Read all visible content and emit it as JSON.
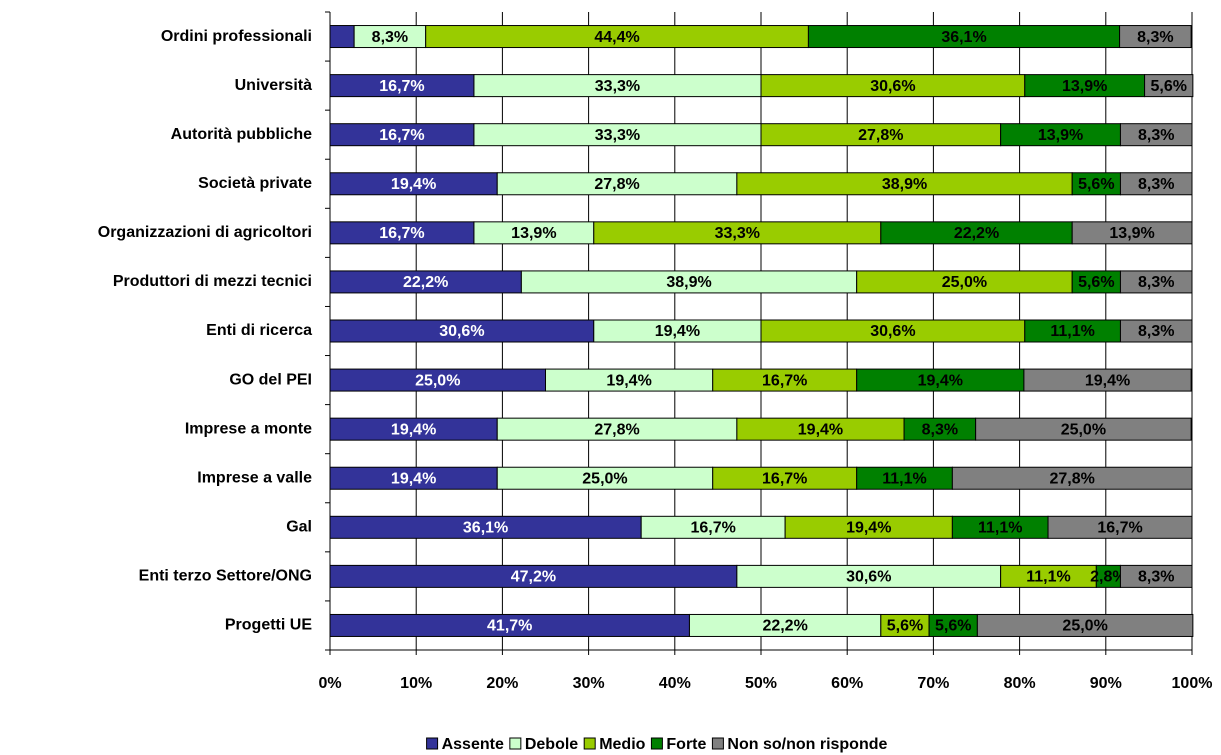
{
  "chart_data": {
    "type": "stacked-barh",
    "categories": [
      "Ordini professionali",
      "Università",
      "Autorità pubbliche",
      "Società private",
      "Organizzazioni di agricoltori",
      "Produttori di mezzi tecnici",
      "Enti di ricerca",
      "GO del PEI",
      "Imprese a monte",
      "Imprese a valle",
      "Gal",
      "Enti terzo Settore/ONG",
      "Progetti UE"
    ],
    "series": [
      {
        "name": "Assente",
        "color": "#333399",
        "label_color": "#ffffff",
        "values": [
          2.8,
          16.7,
          16.7,
          19.4,
          16.7,
          22.2,
          30.6,
          25.0,
          19.4,
          19.4,
          36.1,
          47.2,
          41.7
        ],
        "value_labels": [
          null,
          "16,7%",
          "16,7%",
          "19,4%",
          "16,7%",
          "22,2%",
          "30,6%",
          "25,0%",
          "19,4%",
          "19,4%",
          "36,1%",
          "47,2%",
          "41,7%"
        ]
      },
      {
        "name": "Debole",
        "color": "#ccffcc",
        "label_color": "#000000",
        "values": [
          8.3,
          33.3,
          33.3,
          27.8,
          13.9,
          38.9,
          19.4,
          19.4,
          27.8,
          25.0,
          16.7,
          30.6,
          22.2
        ],
        "value_labels": [
          "8,3%",
          "33,3%",
          "33,3%",
          "27,8%",
          "13,9%",
          "38,9%",
          "19,4%",
          "19,4%",
          "27,8%",
          "25,0%",
          "16,7%",
          "30,6%",
          "22,2%"
        ]
      },
      {
        "name": "Medio",
        "color": "#99cc00",
        "label_color": "#000000",
        "values": [
          44.4,
          30.6,
          27.8,
          38.9,
          33.3,
          25.0,
          30.6,
          16.7,
          19.4,
          16.7,
          19.4,
          11.1,
          5.6
        ],
        "value_labels": [
          "44,4%",
          "30,6%",
          "27,8%",
          "38,9%",
          "33,3%",
          "25,0%",
          "30,6%",
          "16,7%",
          "19,4%",
          "16,7%",
          "19,4%",
          "11,1%",
          "5,6%"
        ]
      },
      {
        "name": "Forte",
        "color": "#008000",
        "label_color": "#000000",
        "values": [
          36.1,
          13.9,
          13.9,
          5.6,
          22.2,
          5.6,
          11.1,
          19.4,
          8.3,
          11.1,
          11.1,
          2.8,
          5.6
        ],
        "value_labels": [
          "36,1%",
          "13,9%",
          "13,9%",
          "5,6%",
          "22,2%",
          "5,6%",
          "11,1%",
          "19,4%",
          "8,3%",
          "11,1%",
          "11,1%",
          "2,8%",
          "5,6%"
        ]
      },
      {
        "name": "Non so/non risponde",
        "color": "#808080",
        "label_color": "#000000",
        "values": [
          8.3,
          5.6,
          8.3,
          8.3,
          13.9,
          8.3,
          8.3,
          19.4,
          25.0,
          27.8,
          16.7,
          8.3,
          25.0
        ],
        "value_labels": [
          "8,3%",
          "5,6%",
          "8,3%",
          "8,3%",
          "13,9%",
          "8,3%",
          "8,3%",
          "19,4%",
          "25,0%",
          "27,8%",
          "16,7%",
          "8,3%",
          "25,0%"
        ]
      }
    ],
    "xlim": [
      0,
      100
    ],
    "xticks": [
      {
        "value": 0,
        "label": "0%"
      },
      {
        "value": 10,
        "label": "10%"
      },
      {
        "value": 20,
        "label": "20%"
      },
      {
        "value": 30,
        "label": "30%"
      },
      {
        "value": 40,
        "label": "40%"
      },
      {
        "value": 50,
        "label": "50%"
      },
      {
        "value": 60,
        "label": "60%"
      },
      {
        "value": 70,
        "label": "70%"
      },
      {
        "value": 80,
        "label": "80%"
      },
      {
        "value": 90,
        "label": "90%"
      },
      {
        "value": 100,
        "label": "100%"
      }
    ],
    "grid": true,
    "legend": "bottom"
  }
}
